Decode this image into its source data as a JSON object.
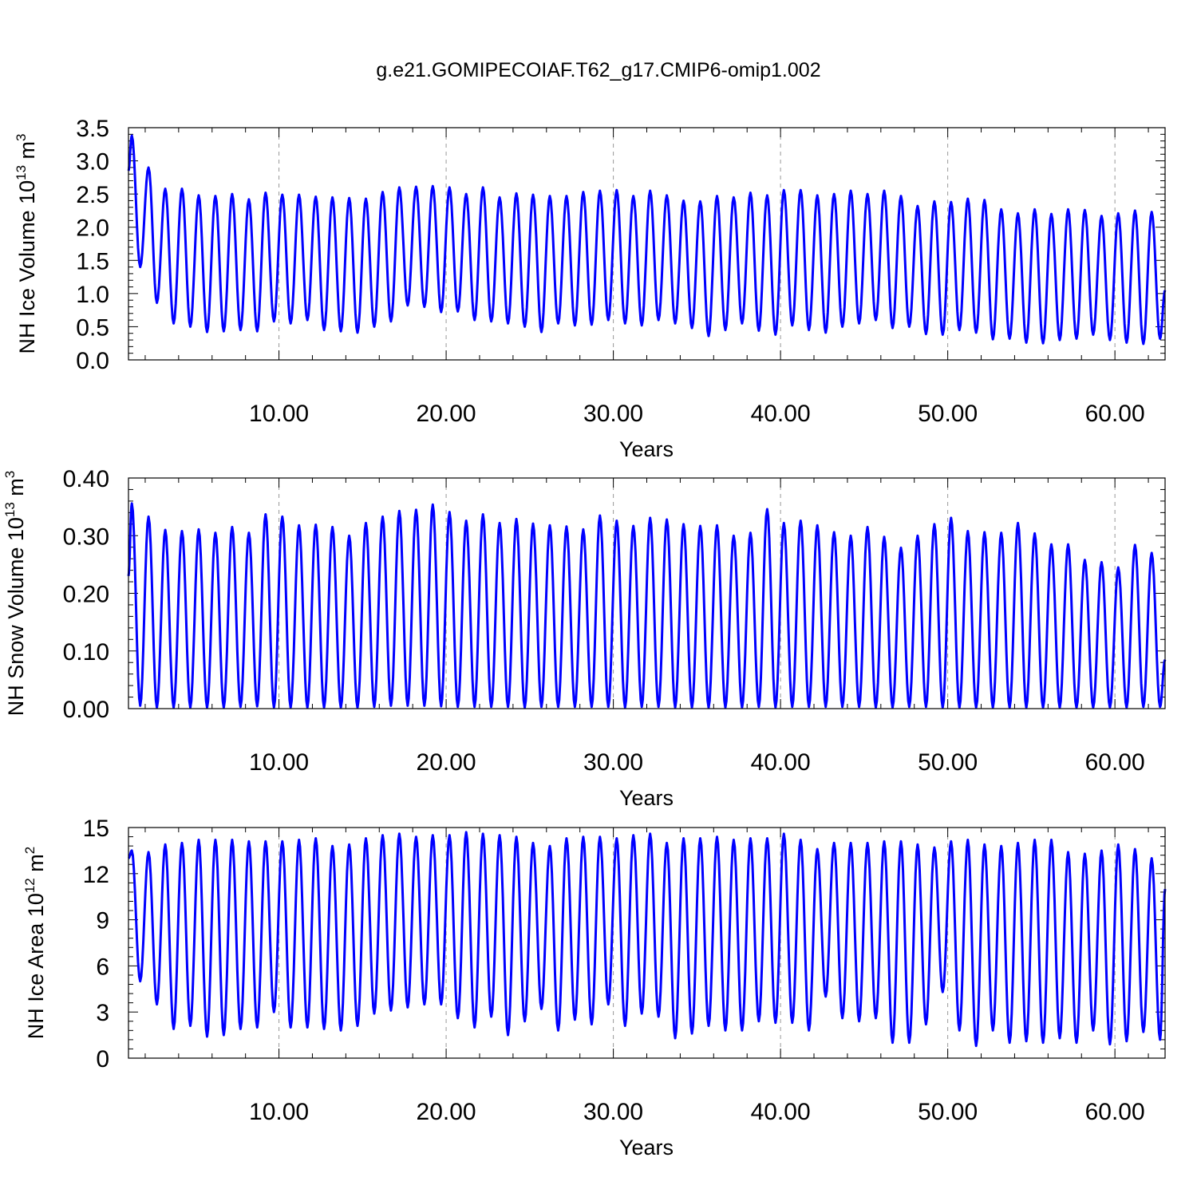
{
  "title": "g.e21.GOMIPECOIAF.T62_g17.CMIP6-omip1.002",
  "line_color": "#0000ff",
  "chart_data": [
    {
      "type": "line",
      "name": "ice-volume",
      "ylabel_main": "NH Ice Volume 10",
      "ylabel_exp": "13",
      "ylabel_unit": " m",
      "ylabel_unit_exp": "3",
      "xlabel": "Years",
      "xlim": [
        1,
        63
      ],
      "ylim": [
        0,
        3.5
      ],
      "yticks": [
        0,
        0.5,
        1.0,
        1.5,
        2.0,
        2.5,
        3.0,
        3.5
      ],
      "ytick_labels": [
        "0.0",
        "0.5",
        "1.0",
        "1.5",
        "2.0",
        "2.5",
        "3.0",
        "3.5"
      ],
      "xticks": [
        10,
        20,
        30,
        40,
        50,
        60
      ],
      "xtick_labels": [
        "10.00",
        "20.00",
        "30.00",
        "40.00",
        "50.00",
        "60.00"
      ],
      "grid_x": true,
      "start_value": 2.85,
      "end_value": 1.05,
      "yearly_max": [
        3.38,
        2.9,
        2.58,
        2.58,
        2.48,
        2.47,
        2.5,
        2.42,
        2.52,
        2.49,
        2.49,
        2.46,
        2.45,
        2.44,
        2.43,
        2.53,
        2.6,
        2.61,
        2.62,
        2.6,
        2.5,
        2.6,
        2.45,
        2.51,
        2.49,
        2.47,
        2.47,
        2.53,
        2.55,
        2.56,
        2.47,
        2.55,
        2.48,
        2.4,
        2.39,
        2.47,
        2.45,
        2.52,
        2.48,
        2.56,
        2.56,
        2.48,
        2.5,
        2.55,
        2.5,
        2.55,
        2.47,
        2.32,
        2.39,
        2.38,
        2.43,
        2.41,
        2.27,
        2.21,
        2.27,
        2.2,
        2.27,
        2.26,
        2.17,
        2.21,
        2.25,
        2.23
      ],
      "yearly_min": [
        1.4,
        0.86,
        0.55,
        0.5,
        0.42,
        0.43,
        0.45,
        0.43,
        0.58,
        0.55,
        0.6,
        0.45,
        0.43,
        0.41,
        0.5,
        0.58,
        0.82,
        0.8,
        0.72,
        0.73,
        0.6,
        0.58,
        0.55,
        0.5,
        0.42,
        0.55,
        0.52,
        0.53,
        0.6,
        0.55,
        0.52,
        0.6,
        0.55,
        0.48,
        0.36,
        0.45,
        0.55,
        0.44,
        0.38,
        0.52,
        0.45,
        0.41,
        0.5,
        0.55,
        0.6,
        0.48,
        0.5,
        0.39,
        0.38,
        0.45,
        0.41,
        0.31,
        0.32,
        0.26,
        0.25,
        0.3,
        0.32,
        0.38,
        0.3,
        0.26,
        0.24,
        0.32
      ]
    },
    {
      "type": "line",
      "name": "snow-volume",
      "ylabel_main": "NH Snow Volume 10",
      "ylabel_exp": "13",
      "ylabel_unit": " m",
      "ylabel_unit_exp": "3",
      "xlabel": "Years",
      "xlim": [
        1,
        63
      ],
      "ylim": [
        0,
        0.4
      ],
      "yticks": [
        0,
        0.1,
        0.2,
        0.3,
        0.4
      ],
      "ytick_labels": [
        "0.00",
        "0.10",
        "0.20",
        "0.30",
        "0.40"
      ],
      "xticks": [
        10,
        20,
        30,
        40,
        50,
        60
      ],
      "xtick_labels": [
        "10.00",
        "20.00",
        "30.00",
        "40.00",
        "50.00",
        "60.00"
      ],
      "grid_x": true,
      "start_value": 0.23,
      "end_value": 0.085,
      "yearly_max": [
        0.356,
        0.333,
        0.31,
        0.308,
        0.311,
        0.305,
        0.315,
        0.305,
        0.337,
        0.333,
        0.318,
        0.319,
        0.315,
        0.3,
        0.322,
        0.333,
        0.343,
        0.345,
        0.354,
        0.341,
        0.326,
        0.337,
        0.322,
        0.329,
        0.321,
        0.318,
        0.316,
        0.311,
        0.335,
        0.326,
        0.317,
        0.331,
        0.328,
        0.32,
        0.317,
        0.318,
        0.3,
        0.305,
        0.346,
        0.322,
        0.326,
        0.318,
        0.306,
        0.3,
        0.315,
        0.298,
        0.279,
        0.3,
        0.32,
        0.331,
        0.308,
        0.306,
        0.305,
        0.322,
        0.304,
        0.285,
        0.285,
        0.258,
        0.254,
        0.245,
        0.284,
        0.27
      ],
      "yearly_min": [
        0.005,
        0.002,
        0.002,
        0.002,
        0.002,
        0.002,
        0.003,
        0.004,
        0.002,
        0.002,
        0.002,
        0.002,
        0.002,
        0.002,
        0.003,
        0.005,
        0.005,
        0.005,
        0.004,
        0.003,
        0.003,
        0.003,
        0.003,
        0.002,
        0.003,
        0.003,
        0.003,
        0.003,
        0.003,
        0.002,
        0.003,
        0.003,
        0.002,
        0.002,
        0.002,
        0.002,
        0.002,
        0.003,
        0.002,
        0.003,
        0.003,
        0.003,
        0.003,
        0.003,
        0.002,
        0.002,
        0.003,
        0.003,
        0.002,
        0.002,
        0.002,
        0.002,
        0.002,
        0.002,
        0.002,
        0.002,
        0.002,
        0.002,
        0.002,
        0.002,
        0.003,
        0.003
      ]
    },
    {
      "type": "line",
      "name": "ice-area",
      "ylabel_main": "NH Ice Area 10",
      "ylabel_exp": "12",
      "ylabel_unit": " m",
      "ylabel_unit_exp": "2",
      "xlabel": "Years",
      "xlim": [
        1,
        63
      ],
      "ylim": [
        0,
        15
      ],
      "yticks": [
        0,
        3,
        6,
        9,
        12,
        15
      ],
      "ytick_labels": [
        "0",
        "3",
        "6",
        "9",
        "12",
        "15"
      ],
      "xticks": [
        10,
        20,
        30,
        40,
        50,
        60
      ],
      "xtick_labels": [
        "10.00",
        "20.00",
        "30.00",
        "40.00",
        "50.00",
        "60.00"
      ],
      "grid_x": true,
      "start_value": 13.0,
      "end_value": 11.0,
      "yearly_max": [
        13.5,
        13.4,
        13.9,
        14.0,
        14.2,
        14.2,
        14.2,
        14.1,
        14.1,
        14.1,
        14.2,
        14.3,
        13.8,
        13.9,
        14.3,
        14.5,
        14.6,
        14.4,
        14.5,
        14.5,
        14.7,
        14.6,
        14.5,
        14.4,
        14.0,
        13.8,
        14.3,
        14.4,
        14.4,
        14.3,
        14.5,
        14.6,
        14.0,
        14.3,
        14.3,
        14.4,
        14.2,
        14.3,
        14.3,
        14.6,
        14.2,
        13.6,
        14.0,
        14.0,
        14.0,
        14.1,
        14.1,
        13.9,
        13.7,
        14.1,
        14.2,
        13.9,
        13.8,
        14.0,
        14.2,
        14.2,
        13.4,
        13.3,
        13.5,
        13.9,
        13.6,
        13.0
      ],
      "yearly_min": [
        5.0,
        3.5,
        1.9,
        2.1,
        1.4,
        1.5,
        1.9,
        2.0,
        3.0,
        2.0,
        2.0,
        1.9,
        1.8,
        2.1,
        2.9,
        3.1,
        3.3,
        3.5,
        3.5,
        2.6,
        2.0,
        2.7,
        1.5,
        2.4,
        3.2,
        1.8,
        2.5,
        2.2,
        3.5,
        2.1,
        2.9,
        2.7,
        1.3,
        1.6,
        2.1,
        1.8,
        1.8,
        2.4,
        2.3,
        2.3,
        1.8,
        4.0,
        2.6,
        2.4,
        2.6,
        1.0,
        1.0,
        2.2,
        4.3,
        1.8,
        0.8,
        1.8,
        1.0,
        1.1,
        1.0,
        1.3,
        1.0,
        1.8,
        0.9,
        1.1,
        1.7,
        1.2
      ]
    }
  ]
}
